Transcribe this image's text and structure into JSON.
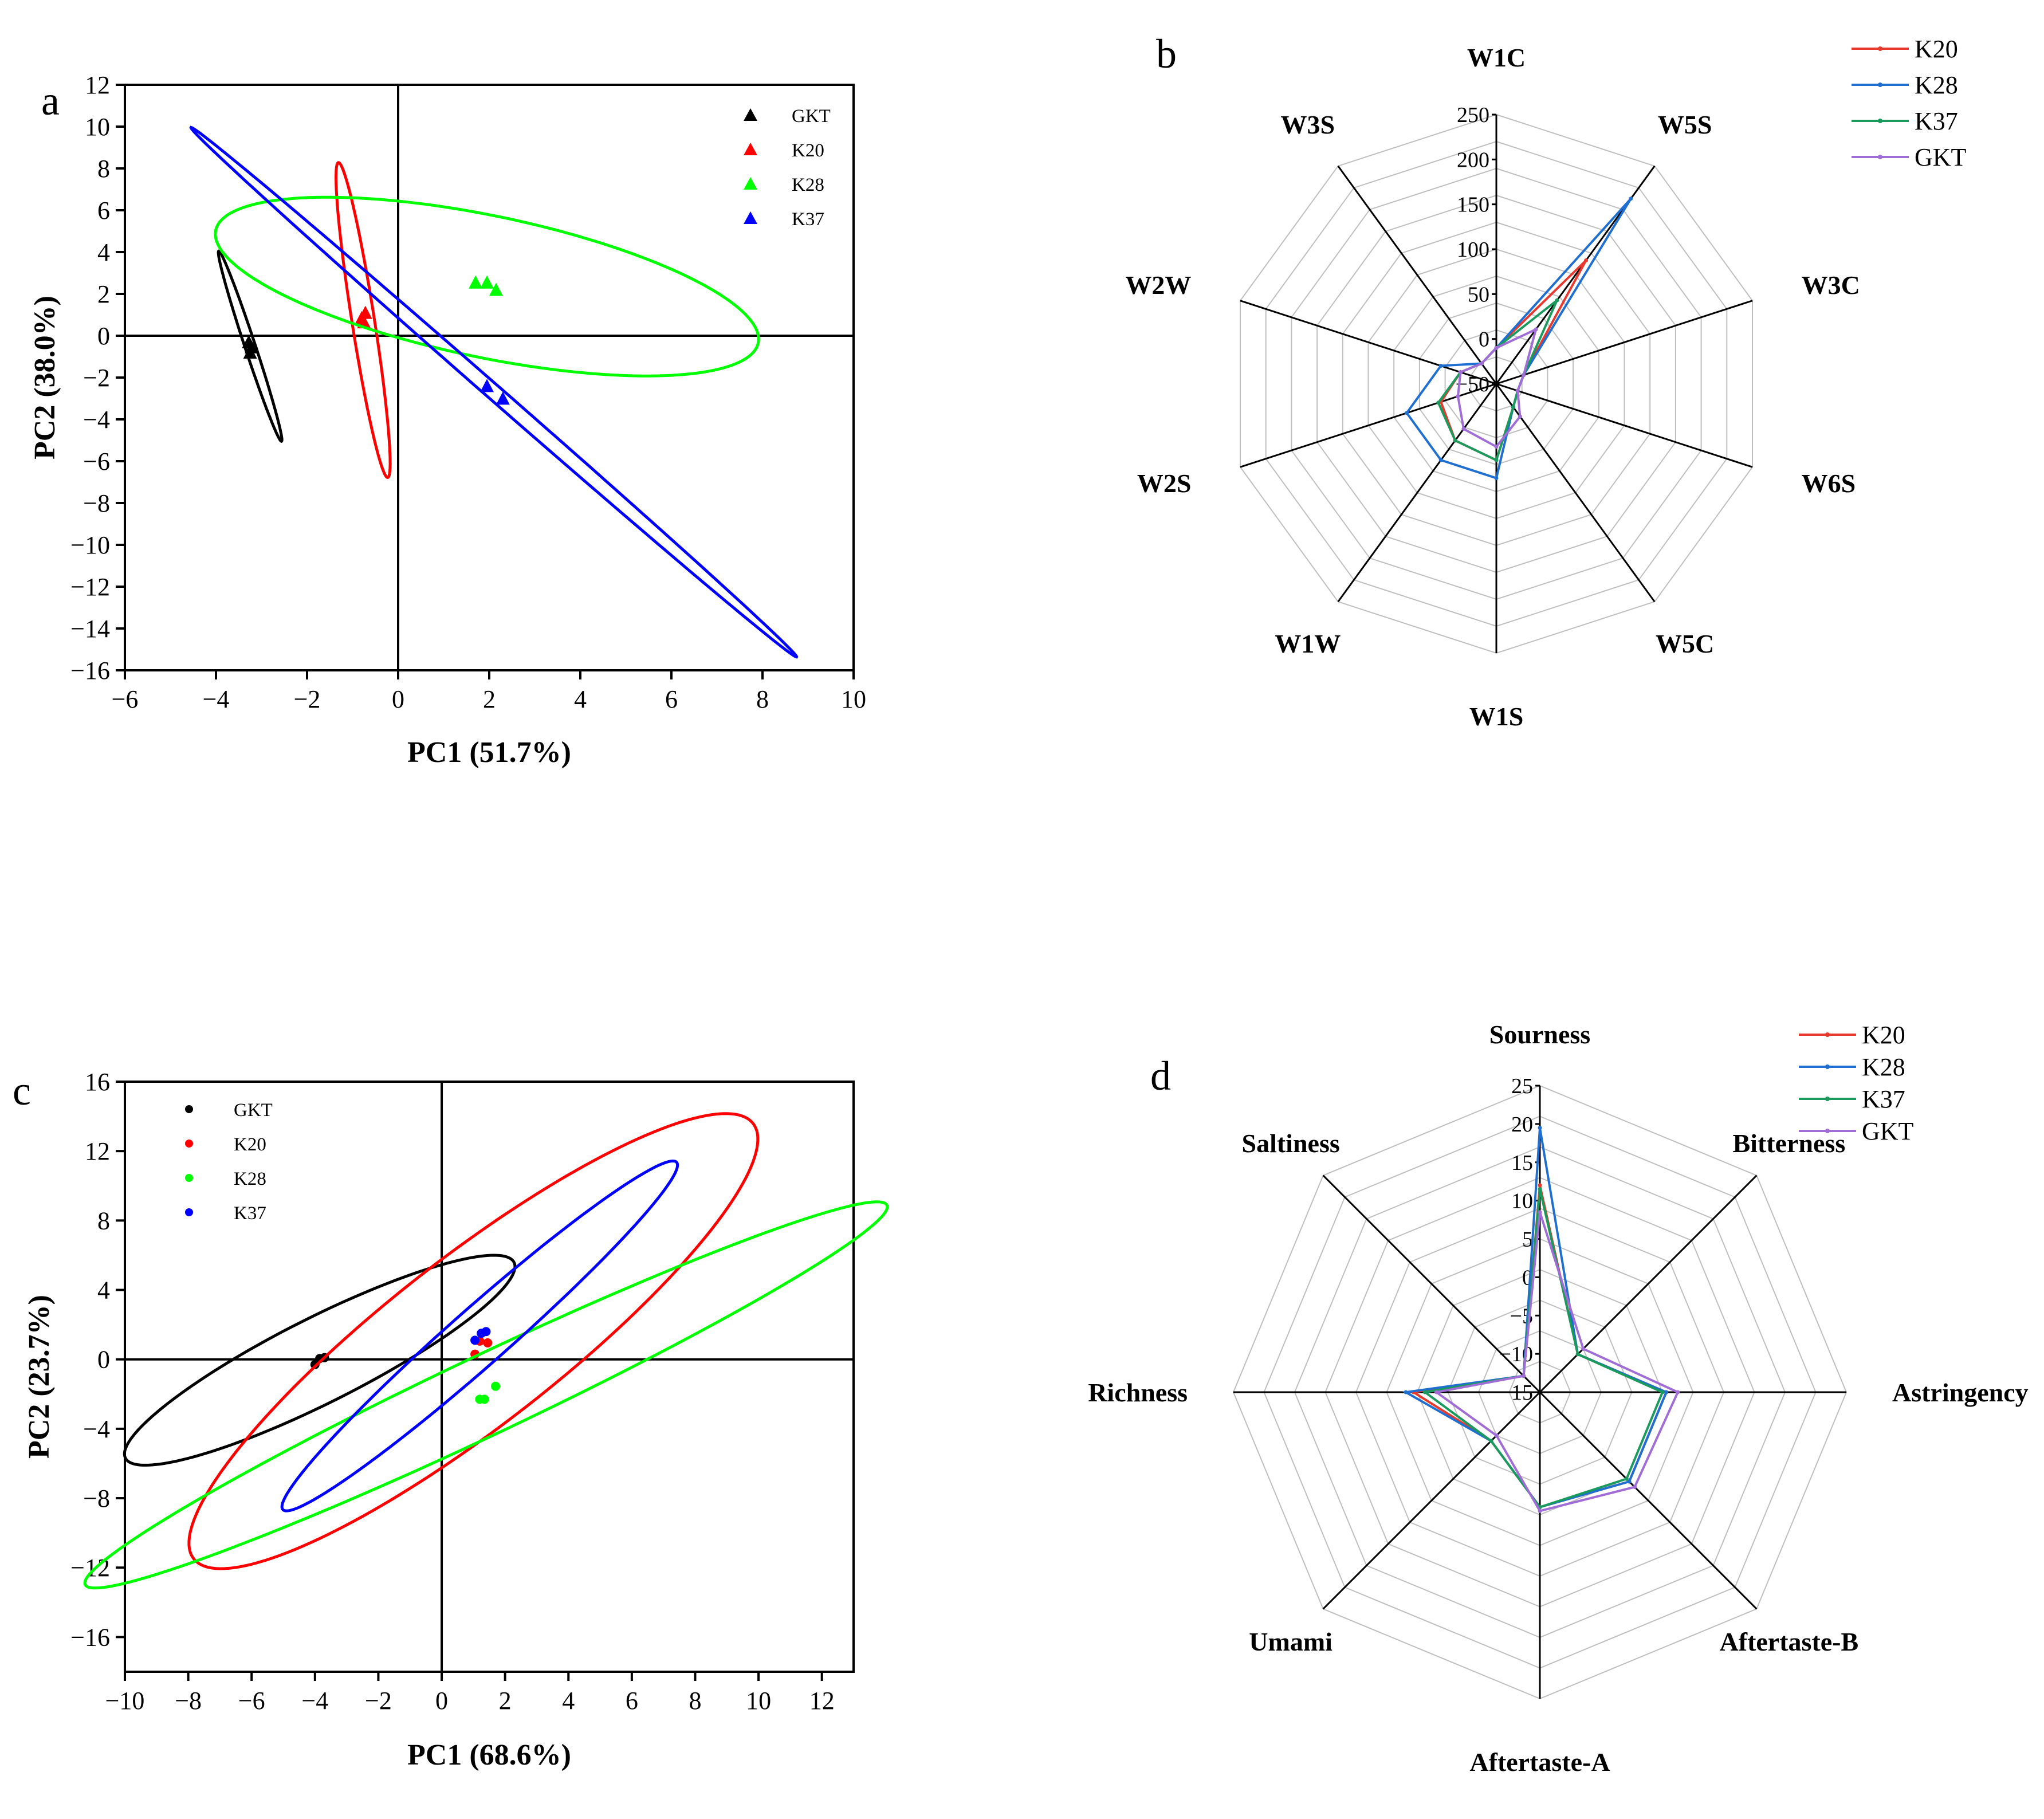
{
  "chart_data": [
    {
      "panel": "a",
      "type": "scatter",
      "xlabel": "PC1 (51.7%)",
      "ylabel": "PC2 (38.0%)",
      "xlim": [
        -6,
        10
      ],
      "ylim": [
        -16,
        12
      ],
      "xticks": [
        -6,
        -4,
        -2,
        0,
        2,
        4,
        6,
        8,
        10
      ],
      "yticks": [
        -16,
        -14,
        -12,
        -10,
        -8,
        -6,
        -4,
        -2,
        0,
        2,
        4,
        6,
        8,
        10,
        12
      ],
      "marker": "triangle",
      "legend_position": "top-right",
      "grid": false,
      "series": [
        {
          "name": "GKT",
          "color": "#000000",
          "points": [
            [
              -3.28,
              -0.35
            ],
            [
              -3.22,
              -0.6
            ],
            [
              -3.25,
              -0.85
            ]
          ],
          "ellipse": {
            "cx": -3.25,
            "cy": -0.5,
            "semi_major": 4.6,
            "semi_minor": 0.12,
            "angle_deg": -81.4
          }
        },
        {
          "name": "K20",
          "color": "#ff0000",
          "points": [
            [
              -0.8,
              0.8
            ],
            [
              -0.72,
              1.05
            ],
            [
              -0.75,
              0.6
            ]
          ],
          "ellipse": {
            "cx": -0.77,
            "cy": 0.75,
            "semi_major": 7.55,
            "semi_minor": 0.25,
            "angle_deg": -85.9
          }
        },
        {
          "name": "K28",
          "color": "#00ff00",
          "points": [
            [
              1.7,
              2.5
            ],
            [
              1.95,
              2.5
            ],
            [
              2.15,
              2.15
            ]
          ],
          "ellipse": {
            "cx": 1.95,
            "cy": 2.35,
            "semi_major": 6.65,
            "semi_minor": 3.1,
            "angle_deg": -30
          }
        },
        {
          "name": "K37",
          "color": "#0000ff",
          "points": [
            [
              1.95,
              -2.45
            ],
            [
              2.3,
              -3.05
            ]
          ],
          "ellipse": {
            "cx": 2.1,
            "cy": -2.7,
            "semi_major": 14.3,
            "semi_minor": 0.22,
            "angle_deg": -62.3
          }
        }
      ]
    },
    {
      "panel": "b",
      "type": "radar",
      "axes": [
        "W1C",
        "W5S",
        "W3C",
        "W6S",
        "W5C",
        "W1S",
        "W1W",
        "W2S",
        "W2W",
        "W3S"
      ],
      "rlim": [
        -50,
        250
      ],
      "rticks": [
        -50,
        0,
        50,
        100,
        150,
        200,
        250
      ],
      "legend_position": "top-right",
      "series": [
        {
          "name": "K20",
          "color": "#e8392f",
          "values": [
            -10,
            120,
            -18,
            -25,
            -18,
            35,
            28,
            15,
            -8,
            -22
          ]
        },
        {
          "name": "K28",
          "color": "#1f6fd1",
          "values": [
            -10,
            205,
            -18,
            -25,
            -18,
            55,
            55,
            55,
            15,
            -22
          ]
        },
        {
          "name": "K37",
          "color": "#1a9a5c",
          "values": [
            -10,
            65,
            -18,
            -25,
            -18,
            35,
            28,
            18,
            -8,
            -22
          ]
        },
        {
          "name": "GKT",
          "color": "#a06cd5",
          "values": [
            -10,
            25,
            -18,
            -25,
            -5,
            20,
            12,
            -5,
            -8,
            -22
          ]
        }
      ]
    },
    {
      "panel": "c",
      "type": "scatter",
      "xlabel": "PC1 (68.6%)",
      "ylabel": "PC2 (23.7%)",
      "xlim": [
        -10,
        13
      ],
      "ylim": [
        -18,
        16
      ],
      "xticks": [
        -10,
        -8,
        -6,
        -4,
        -2,
        0,
        2,
        4,
        6,
        8,
        10,
        12
      ],
      "yticks": [
        -16,
        -12,
        -8,
        -4,
        0,
        4,
        8,
        12,
        16
      ],
      "marker": "circle",
      "legend_position": "top-left",
      "grid": false,
      "series": [
        {
          "name": "GKT",
          "color": "#000000",
          "points": [
            [
              -4.0,
              -0.3
            ],
            [
              -3.85,
              0.05
            ],
            [
              -3.7,
              0.1
            ]
          ],
          "ellipse": {
            "cx": -3.85,
            "cy": -0.05,
            "semi_major": 8.4,
            "semi_minor": 2.0,
            "angle_deg": 44.4
          }
        },
        {
          "name": "K20",
          "color": "#ff0000",
          "points": [
            [
              1.05,
              0.3
            ],
            [
              1.2,
              1.05
            ],
            [
              1.45,
              0.95
            ]
          ],
          "ellipse": {
            "cx": 1.0,
            "cy": 1.05,
            "semi_major": 15.5,
            "semi_minor": 3.5,
            "angle_deg": 56.8
          }
        },
        {
          "name": "K28",
          "color": "#00ff00",
          "points": [
            [
              1.2,
              -2.3
            ],
            [
              1.35,
              -2.3
            ],
            [
              1.7,
              -1.55
            ]
          ],
          "ellipse": {
            "cx": 1.4,
            "cy": -2.05,
            "semi_major": 16.75,
            "semi_minor": 1.9,
            "angle_deg": 41.2
          }
        },
        {
          "name": "K37",
          "color": "#0000ff",
          "points": [
            [
              1.05,
              1.1
            ],
            [
              1.25,
              1.5
            ],
            [
              1.4,
              1.6
            ]
          ],
          "ellipse": {
            "cx": 1.2,
            "cy": 1.35,
            "semi_major": 11.8,
            "semi_minor": 1.15,
            "angle_deg": 58.5
          }
        }
      ]
    },
    {
      "panel": "d",
      "type": "radar",
      "axes": [
        "Sourness",
        "Bitterness",
        "Astringency",
        "Aftertaste-B",
        "Aftertaste-A",
        "Umami",
        "Richness",
        "Saltiness"
      ],
      "rlim": [
        -15,
        25
      ],
      "rticks": [
        -15,
        -10,
        -5,
        0,
        5,
        10,
        15,
        20,
        25
      ],
      "legend_position": "top-right",
      "series": [
        {
          "name": "K20",
          "color": "#e8392f",
          "values": [
            12,
            -8,
            1.5,
            1.5,
            0,
            -6,
            1.5,
            -12
          ]
        },
        {
          "name": "K28",
          "color": "#1f6fd1",
          "values": [
            19.5,
            -8,
            1.5,
            1.5,
            0,
            -6,
            2.5,
            -12
          ]
        },
        {
          "name": "K37",
          "color": "#1a9a5c",
          "values": [
            11.5,
            -8,
            1,
            1,
            0,
            -6,
            0,
            -12
          ]
        },
        {
          "name": "GKT",
          "color": "#a06cd5",
          "values": [
            8.5,
            -7,
            3,
            2.5,
            0.5,
            -7,
            -1.5,
            -12
          ]
        }
      ]
    }
  ]
}
